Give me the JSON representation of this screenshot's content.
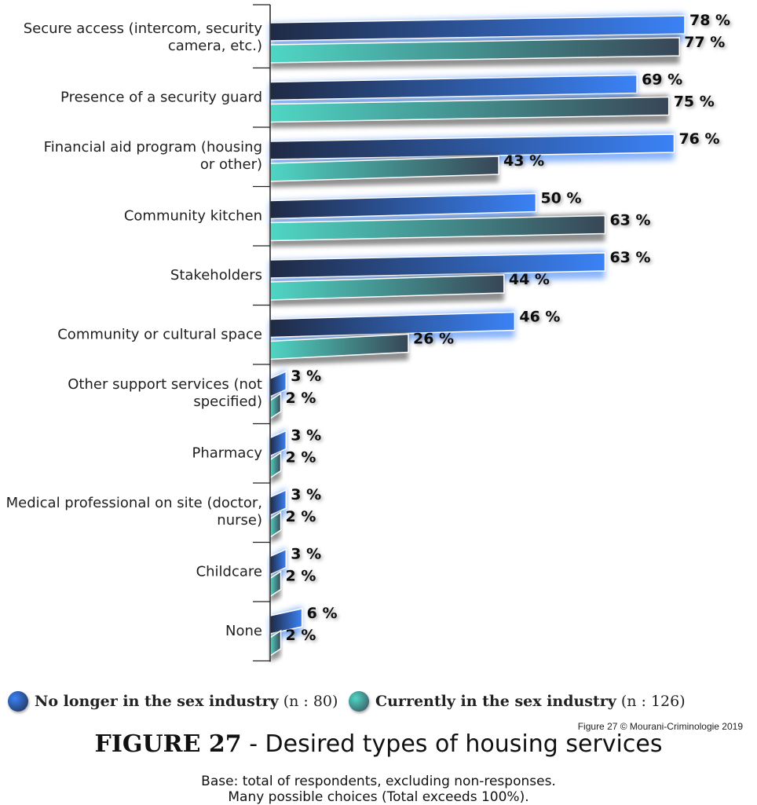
{
  "chart_data": {
    "type": "bar",
    "orientation": "horizontal",
    "categories": [
      [
        "Secure access (intercom, security",
        "camera, etc.)"
      ],
      [
        "Presence of a security guard"
      ],
      [
        "Financial aid program (housing",
        "or other)"
      ],
      [
        "Community kitchen"
      ],
      [
        "Stakeholders"
      ],
      [
        "Community or cultural space"
      ],
      [
        "Other support services (not",
        "specified)"
      ],
      [
        "Pharmacy"
      ],
      [
        "Medical professional on site (doctor,",
        "nurse)"
      ],
      [
        "Childcare"
      ],
      [
        "None"
      ]
    ],
    "series": [
      {
        "name": "No longer in the sex industry",
        "n_label": "(n : 80)",
        "color_start": "#1f2a44",
        "color_end": "#3b82f6",
        "values": [
          78,
          69,
          76,
          50,
          63,
          46,
          3,
          3,
          3,
          3,
          6
        ],
        "labels": [
          "78 %",
          "69 %",
          "76 %",
          "50 %",
          "63 %",
          "46 %",
          "3 %",
          "3 %",
          "3 %",
          "3 %",
          "6 %"
        ]
      },
      {
        "name": "Currently in the sex industry",
        "n_label": "(n : 126)",
        "color_start": "#4fd6c4",
        "color_end": "#384656",
        "values": [
          77,
          75,
          43,
          63,
          44,
          26,
          2,
          2,
          2,
          2,
          2
        ],
        "labels": [
          "77 %",
          "75 %",
          "43 %",
          "63 %",
          "44 %",
          "26 %",
          "2 %",
          "2 %",
          "2 %",
          "2 %",
          "2 %"
        ]
      }
    ],
    "xlim": [
      0,
      78
    ],
    "legend_position": "bottom",
    "grid": false
  },
  "credit": "Figure 27 © Mourani-Criminologie 2019",
  "title": {
    "bold": "FIGURE 27",
    "rest": " - Desired types of housing services"
  },
  "subtitle": {
    "line1": "Base: total of respondents, excluding non-responses.",
    "line2": "Many possible choices (Total exceeds 100%)."
  }
}
